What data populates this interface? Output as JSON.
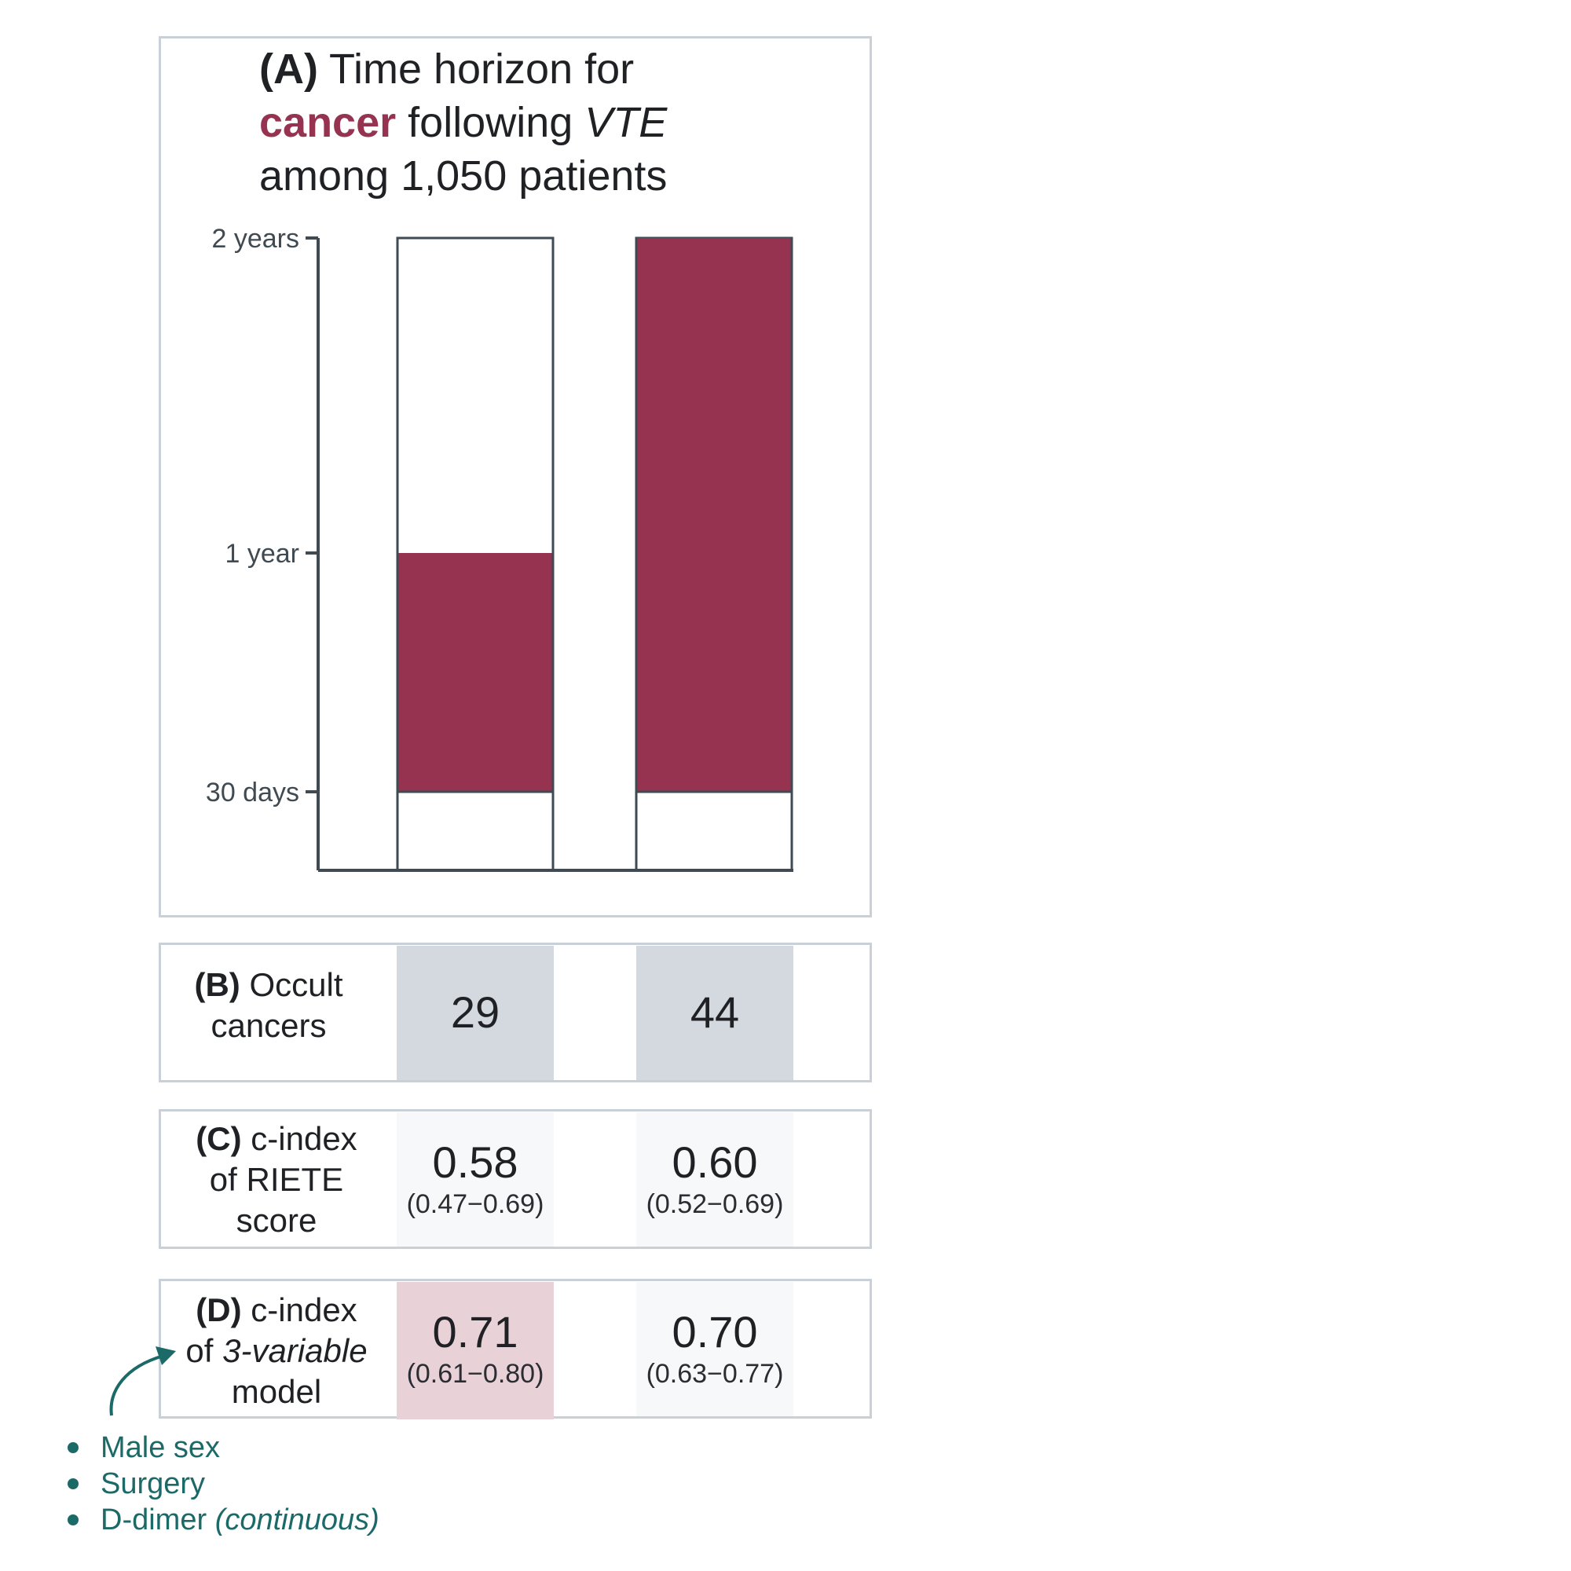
{
  "colors": {
    "cancer": "#953350",
    "axis": "#3f4a52",
    "panel_border": "#c9d0d7",
    "cell_grey": "#d3d9df",
    "cell_light": "#f6f8fa",
    "cell_pink": "#e9d1d8",
    "teal": "#1b6a68"
  },
  "panel_a": {
    "label": "(A)",
    "title_part1": "Time horizon for",
    "title_cancer": "cancer",
    "title_following": "following",
    "title_vte": "VTE",
    "title_line3": "among 1,050 patients"
  },
  "chart_data": {
    "type": "bar",
    "subtype": "floating-range",
    "y_ticks": [
      "30 days",
      "1 year",
      "2 years"
    ],
    "bars": [
      {
        "start": "30 days",
        "end": "1 year"
      },
      {
        "start": "30 days",
        "end": "2 years"
      }
    ]
  },
  "panel_b": {
    "label": "(B)",
    "text_line1": "Occult",
    "text_line2": "cancers",
    "values": [
      "29",
      "44"
    ]
  },
  "panel_c": {
    "label": "(C)",
    "text_line1": "c-index",
    "text_line2": "of RIETE",
    "text_line3": "score",
    "values": [
      {
        "value": "0.58",
        "ci": "(0.47−0.69)"
      },
      {
        "value": "0.60",
        "ci": "(0.52−0.69)"
      }
    ]
  },
  "panel_d": {
    "label": "(D)",
    "text_line1": "c-index",
    "text_of": "of",
    "text_model_name": "3-variable",
    "text_line3": "model",
    "values": [
      {
        "value": "0.71",
        "ci": "(0.61−0.80)"
      },
      {
        "value": "0.70",
        "ci": "(0.63−0.77)"
      }
    ]
  },
  "model_variables": {
    "items": [
      "Male sex",
      "Surgery",
      "D-dimer"
    ],
    "d_dimer_note": "(continuous)"
  }
}
